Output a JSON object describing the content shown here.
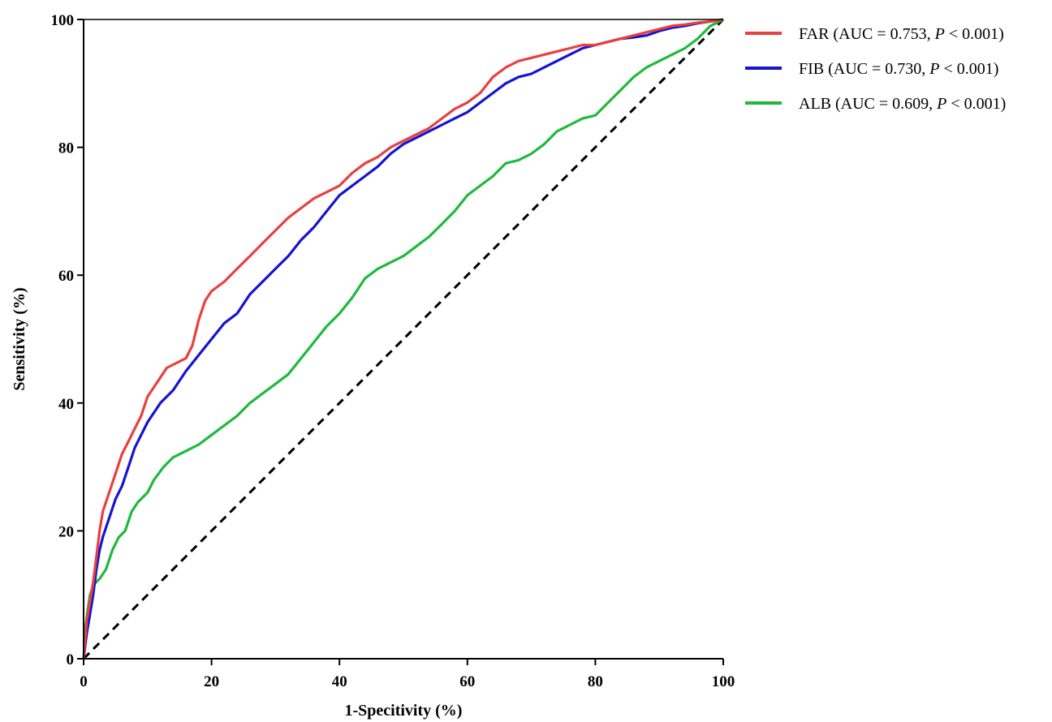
{
  "chart_data": {
    "type": "line",
    "title": "",
    "xlabel": "1-Specitivity (%)",
    "ylabel": "Sensitivity (%)",
    "xlim": [
      0,
      100
    ],
    "ylim": [
      0,
      100
    ],
    "x_ticks": [
      "0",
      "20",
      "40",
      "60",
      "80",
      "100"
    ],
    "y_ticks": [
      "0",
      "20",
      "40",
      "60",
      "80",
      "100"
    ],
    "grid": false,
    "legend_position": "top-right outside",
    "reference_line": {
      "style": "dashed",
      "color": "#000000",
      "points": [
        [
          0,
          0
        ],
        [
          100,
          100
        ]
      ]
    },
    "series": [
      {
        "name": "FAR",
        "legend_prefix": "FAR (AUC = 0.753, ",
        "legend_p": "P",
        "legend_suffix": " < 0.001)",
        "color": "#e8403f",
        "points": [
          [
            0,
            0
          ],
          [
            0.5,
            6
          ],
          [
            1,
            9
          ],
          [
            1.5,
            12
          ],
          [
            2,
            16
          ],
          [
            2.5,
            20
          ],
          [
            3,
            23
          ],
          [
            4,
            26
          ],
          [
            5,
            29
          ],
          [
            6,
            32
          ],
          [
            7,
            34
          ],
          [
            8,
            36
          ],
          [
            9,
            38
          ],
          [
            10,
            41
          ],
          [
            11,
            42.5
          ],
          [
            12,
            44
          ],
          [
            13,
            45.5
          ],
          [
            14,
            46
          ],
          [
            15,
            46.5
          ],
          [
            16,
            47
          ],
          [
            17,
            49
          ],
          [
            18,
            53
          ],
          [
            19,
            56
          ],
          [
            20,
            57.5
          ],
          [
            22,
            59
          ],
          [
            24,
            61
          ],
          [
            26,
            63
          ],
          [
            28,
            65
          ],
          [
            30,
            67
          ],
          [
            32,
            69
          ],
          [
            34,
            70.5
          ],
          [
            36,
            72
          ],
          [
            38,
            73
          ],
          [
            40,
            74
          ],
          [
            42,
            76
          ],
          [
            44,
            77.5
          ],
          [
            46,
            78.5
          ],
          [
            48,
            80
          ],
          [
            50,
            81
          ],
          [
            52,
            82
          ],
          [
            54,
            83
          ],
          [
            56,
            84.5
          ],
          [
            58,
            86
          ],
          [
            60,
            87
          ],
          [
            62,
            88.5
          ],
          [
            64,
            91
          ],
          [
            66,
            92.5
          ],
          [
            68,
            93.5
          ],
          [
            70,
            94
          ],
          [
            72,
            94.5
          ],
          [
            74,
            95
          ],
          [
            76,
            95.5
          ],
          [
            78,
            96
          ],
          [
            80,
            96
          ],
          [
            82,
            96.5
          ],
          [
            84,
            97
          ],
          [
            86,
            97.5
          ],
          [
            88,
            98
          ],
          [
            90,
            98.5
          ],
          [
            92,
            99
          ],
          [
            94,
            99.2
          ],
          [
            96,
            99.5
          ],
          [
            98,
            99.7
          ],
          [
            100,
            100
          ]
        ]
      },
      {
        "name": "FIB",
        "legend_prefix": "FIB (AUC = 0.730, ",
        "legend_p": "P",
        "legend_suffix": " < 0.001)",
        "color": "#1414d2",
        "points": [
          [
            0,
            0
          ],
          [
            0.5,
            4
          ],
          [
            1,
            7
          ],
          [
            1.5,
            10
          ],
          [
            2,
            14
          ],
          [
            2.5,
            17
          ],
          [
            3,
            19
          ],
          [
            4,
            22
          ],
          [
            5,
            25
          ],
          [
            6,
            27
          ],
          [
            7,
            30
          ],
          [
            8,
            33
          ],
          [
            9,
            35
          ],
          [
            10,
            37
          ],
          [
            11,
            38.5
          ],
          [
            12,
            40
          ],
          [
            14,
            42
          ],
          [
            16,
            45
          ],
          [
            18,
            47.5
          ],
          [
            20,
            50
          ],
          [
            22,
            52.5
          ],
          [
            24,
            54
          ],
          [
            26,
            57
          ],
          [
            28,
            59
          ],
          [
            30,
            61
          ],
          [
            32,
            63
          ],
          [
            34,
            65.5
          ],
          [
            36,
            67.5
          ],
          [
            38,
            70
          ],
          [
            40,
            72.5
          ],
          [
            42,
            74
          ],
          [
            44,
            75.5
          ],
          [
            46,
            77
          ],
          [
            48,
            79
          ],
          [
            50,
            80.5
          ],
          [
            52,
            81.5
          ],
          [
            54,
            82.5
          ],
          [
            56,
            83.5
          ],
          [
            58,
            84.5
          ],
          [
            60,
            85.5
          ],
          [
            62,
            87
          ],
          [
            64,
            88.5
          ],
          [
            66,
            90
          ],
          [
            68,
            91
          ],
          [
            70,
            91.5
          ],
          [
            72,
            92.5
          ],
          [
            74,
            93.5
          ],
          [
            76,
            94.5
          ],
          [
            78,
            95.5
          ],
          [
            80,
            96
          ],
          [
            82,
            96.5
          ],
          [
            84,
            97
          ],
          [
            86,
            97.2
          ],
          [
            88,
            97.5
          ],
          [
            90,
            98.2
          ],
          [
            92,
            98.7
          ],
          [
            94,
            99
          ],
          [
            96,
            99.4
          ],
          [
            98,
            99.7
          ],
          [
            100,
            100
          ]
        ]
      },
      {
        "name": "ALB",
        "legend_prefix": "ALB (AUC = 0.609, ",
        "legend_p": "P",
        "legend_suffix": " < 0.001)",
        "color": "#1fb93c",
        "points": [
          [
            0,
            0
          ],
          [
            0.3,
            5
          ],
          [
            0.7,
            8
          ],
          [
            1,
            10
          ],
          [
            1.5,
            11.5
          ],
          [
            2.5,
            12.5
          ],
          [
            3.5,
            14
          ],
          [
            4.5,
            17
          ],
          [
            5.5,
            19
          ],
          [
            6.5,
            20
          ],
          [
            7.5,
            23
          ],
          [
            8.5,
            24.5
          ],
          [
            10,
            26
          ],
          [
            11,
            28
          ],
          [
            12.5,
            30
          ],
          [
            14,
            31.5
          ],
          [
            16,
            32.5
          ],
          [
            18,
            33.5
          ],
          [
            20,
            35
          ],
          [
            22,
            36.5
          ],
          [
            24,
            38
          ],
          [
            26,
            40
          ],
          [
            28,
            41.5
          ],
          [
            30,
            43
          ],
          [
            32,
            44.5
          ],
          [
            34,
            47
          ],
          [
            36,
            49.5
          ],
          [
            38,
            52
          ],
          [
            40,
            54
          ],
          [
            42,
            56.5
          ],
          [
            44,
            59.5
          ],
          [
            46,
            61
          ],
          [
            48,
            62
          ],
          [
            50,
            63
          ],
          [
            52,
            64.5
          ],
          [
            54,
            66
          ],
          [
            56,
            68
          ],
          [
            58,
            70
          ],
          [
            60,
            72.5
          ],
          [
            62,
            74
          ],
          [
            64,
            75.5
          ],
          [
            66,
            77.5
          ],
          [
            68,
            78
          ],
          [
            70,
            79
          ],
          [
            72,
            80.5
          ],
          [
            74,
            82.5
          ],
          [
            76,
            83.5
          ],
          [
            78,
            84.5
          ],
          [
            80,
            85
          ],
          [
            82,
            87
          ],
          [
            84,
            89
          ],
          [
            86,
            91
          ],
          [
            88,
            92.5
          ],
          [
            90,
            93.5
          ],
          [
            92,
            94.5
          ],
          [
            94,
            95.5
          ],
          [
            96,
            97
          ],
          [
            98,
            99
          ],
          [
            100,
            100
          ]
        ]
      }
    ]
  }
}
